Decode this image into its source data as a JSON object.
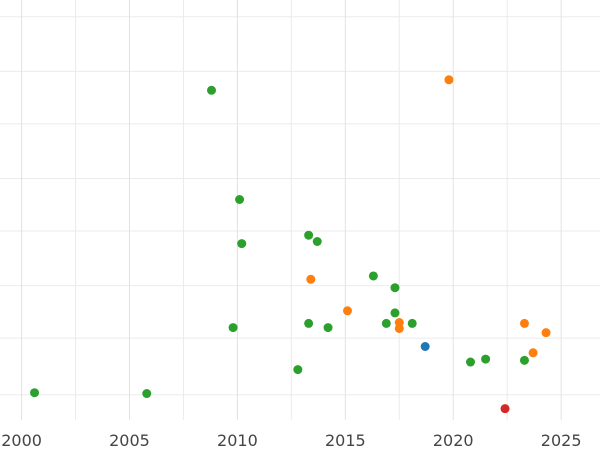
{
  "chart_data": {
    "type": "scatter",
    "title": "",
    "xlabel": "",
    "ylabel": "",
    "xlim": [
      1999.0,
      2026.8
    ],
    "ylim": [
      0,
      100
    ],
    "x_ticks": [
      2000,
      2005,
      2010,
      2015,
      2020,
      2025
    ],
    "x_tick_labels": [
      "2000",
      "2005",
      "2010",
      "2015",
      "2020",
      "2025"
    ],
    "y_gridlines": [
      6,
      19.5,
      32,
      45,
      57.5,
      70.5,
      83,
      96
    ],
    "grid": true,
    "legend": "none",
    "series": [
      {
        "color": "#2ca02c",
        "points": [
          {
            "x": 2000.6,
            "y": 6.5
          },
          {
            "x": 2005.8,
            "y": 6.3
          },
          {
            "x": 2008.8,
            "y": 78.5
          },
          {
            "x": 2009.8,
            "y": 22.0
          },
          {
            "x": 2010.1,
            "y": 52.5
          },
          {
            "x": 2010.2,
            "y": 42.0
          },
          {
            "x": 2012.8,
            "y": 12.0
          },
          {
            "x": 2013.3,
            "y": 23.0
          },
          {
            "x": 2013.3,
            "y": 44.0
          },
          {
            "x": 2013.7,
            "y": 42.5
          },
          {
            "x": 2014.2,
            "y": 22.0
          },
          {
            "x": 2016.3,
            "y": 34.3
          },
          {
            "x": 2016.9,
            "y": 23.0
          },
          {
            "x": 2017.3,
            "y": 25.5
          },
          {
            "x": 2017.3,
            "y": 31.5
          },
          {
            "x": 2018.1,
            "y": 23.0
          },
          {
            "x": 2020.8,
            "y": 13.8
          },
          {
            "x": 2021.5,
            "y": 14.5
          },
          {
            "x": 2023.3,
            "y": 14.2
          }
        ]
      },
      {
        "color": "#ff7f0e",
        "points": [
          {
            "x": 2013.4,
            "y": 33.5
          },
          {
            "x": 2015.1,
            "y": 26.0
          },
          {
            "x": 2017.5,
            "y": 23.2
          },
          {
            "x": 2017.5,
            "y": 21.8
          },
          {
            "x": 2019.8,
            "y": 81.0
          },
          {
            "x": 2023.3,
            "y": 23.0
          },
          {
            "x": 2023.7,
            "y": 16.0
          },
          {
            "x": 2024.3,
            "y": 20.8
          }
        ]
      },
      {
        "color": "#1f77b4",
        "points": [
          {
            "x": 2018.7,
            "y": 17.5
          }
        ]
      },
      {
        "color": "#d62728",
        "points": [
          {
            "x": 2022.4,
            "y": 2.7
          }
        ]
      }
    ]
  }
}
